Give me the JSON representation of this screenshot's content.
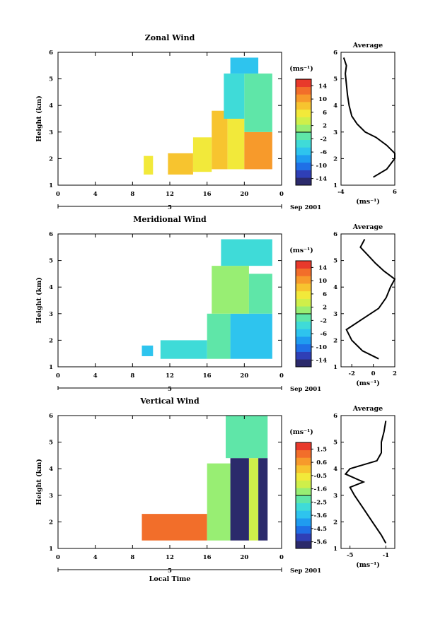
{
  "colormap": [
    "#2b2a6b",
    "#2f3fb6",
    "#1f6fe6",
    "#1f9cf0",
    "#2ec4ee",
    "#3fdbd8",
    "#5fe6a8",
    "#98ee73",
    "#cfef4a",
    "#f2e93a",
    "#f7c42f",
    "#f79a2b",
    "#f26e2a",
    "#e8392b"
  ],
  "panels": [
    {
      "id": "zonal",
      "title": "Zonal Wind",
      "ylabel": "Height (km)",
      "xlabel": "",
      "x_ticks": [
        "0",
        "4",
        "8",
        "12",
        "16",
        "20",
        "0"
      ],
      "y_ticks": [
        "1",
        "2",
        "3",
        "4",
        "5",
        "6"
      ],
      "date_day": "5",
      "date_label": "Sep 2001",
      "cbar_unit": "(ms⁻¹)",
      "cbar_labels": [
        "14",
        "10",
        "6",
        "2",
        "-2",
        "-6",
        "-10",
        "-14"
      ],
      "avg_title": "Average",
      "avg_xlabel": "(ms⁻¹)",
      "avg_x_ticks": [
        "-4",
        "6"
      ],
      "avg_y_ticks": [
        "1",
        "2",
        "3",
        "4",
        "5",
        "6"
      ]
    },
    {
      "id": "meridional",
      "title": "Meridional Wind",
      "ylabel": "Height (km)",
      "xlabel": "",
      "x_ticks": [
        "0",
        "4",
        "8",
        "12",
        "16",
        "20",
        "0"
      ],
      "y_ticks": [
        "1",
        "2",
        "3",
        "4",
        "5",
        "6"
      ],
      "date_day": "5",
      "date_label": "Sep 2001",
      "cbar_unit": "(ms⁻¹)",
      "cbar_labels": [
        "14",
        "10",
        "6",
        "2",
        "-2",
        "-6",
        "-10",
        "-14"
      ],
      "avg_title": "Average",
      "avg_xlabel": "(ms⁻¹)",
      "avg_x_ticks": [
        "-2",
        "0",
        "2"
      ],
      "avg_y_ticks": [
        "1",
        "2",
        "3",
        "4",
        "5",
        "6"
      ]
    },
    {
      "id": "vertical",
      "title": "Vertical Wind",
      "ylabel": "Height (km)",
      "xlabel": "Local Time",
      "x_ticks": [
        "0",
        "4",
        "8",
        "12",
        "16",
        "20",
        "0"
      ],
      "y_ticks": [
        "1",
        "2",
        "3",
        "4",
        "5",
        "6"
      ],
      "date_day": "5",
      "date_label": "Sep 2001",
      "cbar_unit": "(ms⁻¹)",
      "cbar_labels": [
        "1.5",
        "0.6",
        "-0.5",
        "-1.6",
        "-2.5",
        "-3.6",
        "-4.5",
        "-5.6"
      ],
      "avg_title": "Average",
      "avg_xlabel": "(ms⁻¹)",
      "avg_x_ticks": [
        "-5",
        "-1"
      ],
      "avg_y_ticks": [
        "1",
        "2",
        "3",
        "4",
        "5",
        "6"
      ]
    }
  ],
  "chart_data": [
    {
      "type": "heatmap",
      "title": "Zonal Wind",
      "ylabel": "Height (km)",
      "xlim": [
        0,
        24
      ],
      "ylim": [
        1,
        6
      ],
      "colorbar": {
        "unit": "(ms⁻¹)",
        "range": [
          -14,
          14
        ]
      },
      "blocks": [
        {
          "t0": 9.2,
          "t1": 10.2,
          "h0": 1.4,
          "h1": 2.1,
          "v": 6
        },
        {
          "t0": 11.8,
          "t1": 14.5,
          "h0": 1.4,
          "h1": 2.2,
          "v": 7
        },
        {
          "t0": 14.5,
          "t1": 16.5,
          "h0": 1.5,
          "h1": 2.8,
          "v": 6
        },
        {
          "t0": 16.5,
          "t1": 18.2,
          "h0": 1.6,
          "h1": 3.8,
          "v": 8
        },
        {
          "t0": 18.2,
          "t1": 20.0,
          "h0": 1.6,
          "h1": 3.5,
          "v": 6
        },
        {
          "t0": 20.0,
          "t1": 23.0,
          "h0": 1.6,
          "h1": 3.0,
          "v": 10
        },
        {
          "t0": 17.8,
          "t1": 20.0,
          "h0": 3.5,
          "h1": 5.2,
          "v": -4
        },
        {
          "t0": 20.0,
          "t1": 23.0,
          "h0": 3.0,
          "h1": 5.2,
          "v": -2
        },
        {
          "t0": 18.5,
          "t1": 21.5,
          "h0": 5.2,
          "h1": 5.8,
          "v": -6
        }
      ],
      "average_profile": {
        "x_label": "(ms⁻¹)",
        "xlim": [
          -4,
          6
        ],
        "height": [
          1.3,
          1.6,
          2.0,
          2.2,
          2.5,
          2.8,
          3.0,
          3.3,
          3.6,
          4.0,
          4.4,
          4.8,
          5.2,
          5.5,
          5.8
        ],
        "value": [
          2.0,
          4.5,
          6.0,
          6.0,
          4.5,
          2.5,
          0.5,
          -1.0,
          -2.0,
          -2.5,
          -2.8,
          -3.0,
          -3.2,
          -3.0,
          -3.5
        ]
      }
    },
    {
      "type": "heatmap",
      "title": "Meridional Wind",
      "ylabel": "Height (km)",
      "xlim": [
        0,
        24
      ],
      "ylim": [
        1,
        6
      ],
      "colorbar": {
        "unit": "(ms⁻¹)",
        "range": [
          -14,
          14
        ]
      },
      "blocks": [
        {
          "t0": 9.0,
          "t1": 10.2,
          "h0": 1.4,
          "h1": 1.8,
          "v": -6
        },
        {
          "t0": 11.0,
          "t1": 16.0,
          "h0": 1.3,
          "h1": 2.0,
          "v": -4
        },
        {
          "t0": 16.0,
          "t1": 18.5,
          "h0": 1.3,
          "h1": 3.0,
          "v": -2
        },
        {
          "t0": 18.5,
          "t1": 23.0,
          "h0": 1.3,
          "h1": 3.0,
          "v": -6
        },
        {
          "t0": 16.5,
          "t1": 20.5,
          "h0": 3.0,
          "h1": 4.8,
          "v": 2
        },
        {
          "t0": 20.5,
          "t1": 23.0,
          "h0": 3.0,
          "h1": 4.5,
          "v": -2
        },
        {
          "t0": 17.5,
          "t1": 23.0,
          "h0": 4.8,
          "h1": 5.8,
          "v": -4
        }
      ],
      "average_profile": {
        "x_label": "(ms⁻¹)",
        "xlim": [
          -3,
          2
        ],
        "height": [
          1.3,
          1.6,
          2.0,
          2.4,
          2.8,
          3.2,
          3.6,
          4.0,
          4.3,
          4.6,
          4.9,
          5.2,
          5.5,
          5.8
        ],
        "value": [
          0.5,
          -1.0,
          -2.0,
          -2.5,
          -1.0,
          0.5,
          1.2,
          1.6,
          2.0,
          1.0,
          0.2,
          -0.5,
          -1.2,
          -0.8
        ]
      }
    },
    {
      "type": "heatmap",
      "title": "Vertical Wind",
      "ylabel": "Height (km)",
      "xlabel": "Local Time",
      "xlim": [
        0,
        24
      ],
      "ylim": [
        1,
        6
      ],
      "colorbar": {
        "unit": "(ms⁻¹)",
        "range": [
          -5.6,
          1.5
        ]
      },
      "blocks": [
        {
          "t0": 9.0,
          "t1": 16.0,
          "h0": 1.3,
          "h1": 2.3,
          "v": 1.0
        },
        {
          "t0": 16.0,
          "t1": 18.5,
          "h0": 1.3,
          "h1": 4.2,
          "v": -2.0
        },
        {
          "t0": 18.5,
          "t1": 20.5,
          "h0": 1.3,
          "h1": 4.4,
          "v": -5.6
        },
        {
          "t0": 20.5,
          "t1": 21.5,
          "h0": 1.3,
          "h1": 4.4,
          "v": -1.0
        },
        {
          "t0": 21.5,
          "t1": 22.5,
          "h0": 1.3,
          "h1": 4.4,
          "v": -5.6
        },
        {
          "t0": 18.0,
          "t1": 22.5,
          "h0": 4.4,
          "h1": 6.0,
          "v": -2.5
        }
      ],
      "average_profile": {
        "x_label": "(ms⁻¹)",
        "xlim": [
          -6,
          0
        ],
        "height": [
          1.2,
          1.5,
          2.0,
          2.5,
          3.0,
          3.3,
          3.5,
          3.8,
          4.0,
          4.3,
          4.6,
          5.0,
          5.4,
          5.8
        ],
        "value": [
          -1.0,
          -1.5,
          -2.5,
          -3.5,
          -4.5,
          -5.0,
          -3.5,
          -5.5,
          -5.0,
          -2.0,
          -1.5,
          -1.5,
          -1.2,
          -1.0
        ]
      }
    }
  ]
}
